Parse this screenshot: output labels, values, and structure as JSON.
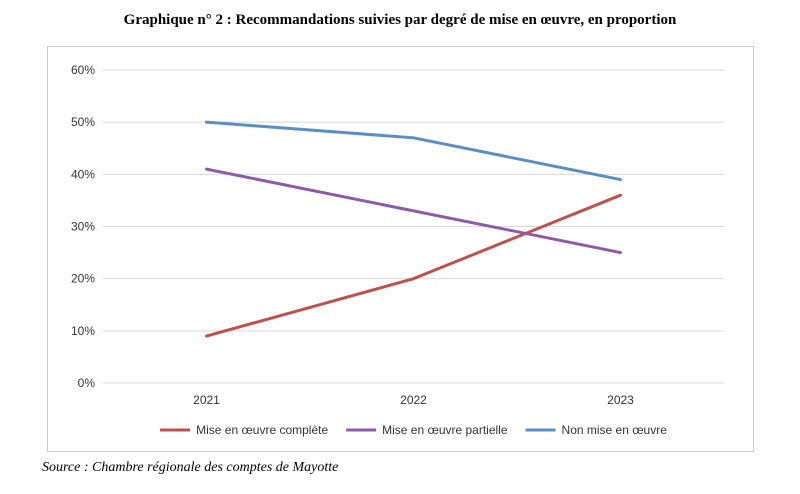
{
  "title": "Graphique n° 2 :  Recommandations suivies par degré de mise en œuvre, en proportion",
  "source": "Source : Chambre régionale des comptes de Mayotte",
  "chart_data": {
    "type": "line",
    "categories": [
      "2021",
      "2022",
      "2023"
    ],
    "series": [
      {
        "name": "Mise en œuvre complète",
        "values": [
          9,
          20,
          36
        ],
        "color": "#c0504d"
      },
      {
        "name": "Mise en œuvre partielle",
        "values": [
          41,
          33,
          25
        ],
        "color": "#8e5ba6"
      },
      {
        "name": "Non mise en œuvre",
        "values": [
          50,
          47,
          39
        ],
        "color": "#5b8ec4"
      }
    ],
    "yticks": [
      "0%",
      "10%",
      "20%",
      "30%",
      "40%",
      "50%",
      "60%"
    ],
    "ylim": [
      0,
      60
    ],
    "y_unit": "%",
    "grid": true,
    "legend_position": "bottom",
    "colors": {
      "grid": "#d9d9d9",
      "frame": "#c9c9c9",
      "text": "#333333"
    }
  }
}
